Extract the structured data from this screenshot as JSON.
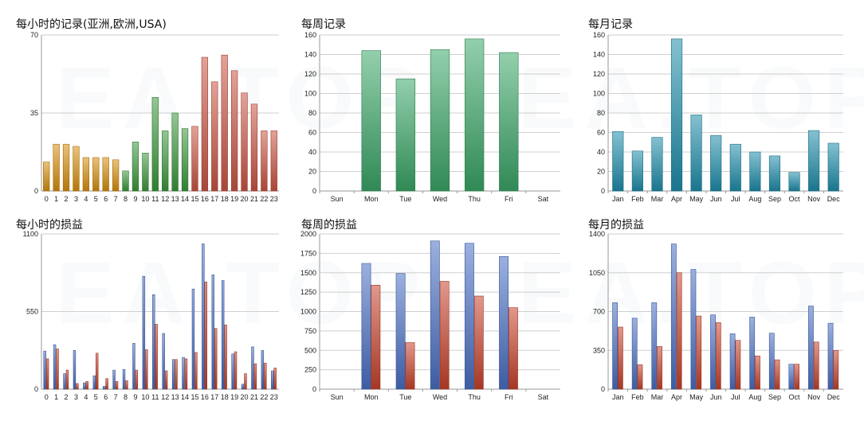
{
  "watermark": "EA.TOP",
  "chart_data": [
    {
      "id": "hourly-records",
      "type": "bar",
      "title": "每小时的记录(亚洲,欧洲,USA)",
      "categories": [
        "0",
        "1",
        "2",
        "3",
        "4",
        "5",
        "6",
        "7",
        "8",
        "9",
        "10",
        "11",
        "12",
        "13",
        "14",
        "15",
        "16",
        "17",
        "18",
        "19",
        "20",
        "21",
        "22",
        "23"
      ],
      "series": [
        {
          "values": [
            13,
            21,
            21,
            20,
            15,
            15,
            15,
            14,
            9,
            22,
            17,
            42,
            27,
            35,
            28,
            29,
            60,
            49,
            61,
            54,
            44,
            39,
            27,
            27
          ]
        }
      ],
      "bar_colors": [
        "#d9900e",
        "#d9900e",
        "#d9900e",
        "#d9900e",
        "#d9900e",
        "#d9900e",
        "#d9900e",
        "#d9900e",
        "#3c9a3c",
        "#3c9a3c",
        "#3c9a3c",
        "#3c9a3c",
        "#3c9a3c",
        "#3c9a3c",
        "#3c9a3c",
        "#cc5544",
        "#cc5544",
        "#cc5544",
        "#cc5544",
        "#cc5544",
        "#cc5544",
        "#cc5544",
        "#cc5544",
        "#cc5544"
      ],
      "ylim": [
        0,
        70
      ],
      "yticks": [
        0,
        35,
        70
      ],
      "grid": true
    },
    {
      "id": "weekly-records",
      "type": "bar",
      "title": "每周记录",
      "categories": [
        "Sun",
        "Mon",
        "Tue",
        "Wed",
        "Thu",
        "Fri",
        "Sat"
      ],
      "series": [
        {
          "values": [
            0,
            144,
            115,
            145,
            156,
            142,
            0
          ],
          "color": "#3aa768"
        }
      ],
      "ylim": [
        0,
        160
      ],
      "yticks": [
        0,
        20,
        40,
        60,
        80,
        100,
        120,
        140,
        160
      ],
      "grid": true
    },
    {
      "id": "monthly-records",
      "type": "bar",
      "title": "每月记录",
      "categories": [
        "Jan",
        "Feb",
        "Mar",
        "Apr",
        "May",
        "Jun",
        "Jul",
        "Aug",
        "Sep",
        "Oct",
        "Nov",
        "Dec"
      ],
      "series": [
        {
          "values": [
            61,
            41,
            55,
            156,
            78,
            57,
            48,
            40,
            36,
            19,
            62,
            49
          ],
          "color": "#1f8fac"
        }
      ],
      "ylim": [
        0,
        160
      ],
      "yticks": [
        0,
        20,
        40,
        60,
        80,
        100,
        120,
        140,
        160
      ],
      "grid": true
    },
    {
      "id": "hourly-profit",
      "type": "bar",
      "title": "每小时的损益",
      "categories": [
        "0",
        "1",
        "2",
        "3",
        "4",
        "5",
        "6",
        "7",
        "8",
        "9",
        "10",
        "11",
        "12",
        "13",
        "14",
        "15",
        "16",
        "17",
        "18",
        "19",
        "20",
        "21",
        "22",
        "23"
      ],
      "series": [
        {
          "values": [
            270,
            315,
            110,
            275,
            45,
            95,
            20,
            135,
            140,
            325,
            800,
            670,
            395,
            210,
            225,
            710,
            1030,
            810,
            770,
            250,
            35,
            300,
            275,
            130
          ],
          "color": "#4a70c5"
        },
        {
          "values": [
            215,
            285,
            135,
            40,
            55,
            255,
            75,
            55,
            60,
            135,
            280,
            460,
            130,
            210,
            215,
            260,
            760,
            430,
            455,
            265,
            110,
            180,
            185,
            150
          ],
          "color": "#c9432c"
        }
      ],
      "ylim": [
        0,
        1100
      ],
      "yticks": [
        0,
        550,
        1100
      ],
      "grid": true
    },
    {
      "id": "weekly-profit",
      "type": "bar",
      "title": "每周的损益",
      "categories": [
        "Sun",
        "Mon",
        "Tue",
        "Wed",
        "Thu",
        "Fri",
        "Sat"
      ],
      "series": [
        {
          "values": [
            0,
            1620,
            1490,
            1910,
            1880,
            1710,
            0
          ],
          "color": "#4a70c5"
        },
        {
          "values": [
            0,
            1340,
            600,
            1390,
            1200,
            1050,
            0
          ],
          "color": "#c9432c"
        }
      ],
      "ylim": [
        0,
        2000
      ],
      "yticks": [
        0,
        250,
        500,
        750,
        1000,
        1250,
        1500,
        1750,
        2000
      ],
      "grid": true
    },
    {
      "id": "monthly-profit",
      "type": "bar",
      "title": "每月的损益",
      "categories": [
        "Jan",
        "Feb",
        "Mar",
        "Apr",
        "May",
        "Jun",
        "Jul",
        "Aug",
        "Sep",
        "Oct",
        "Nov",
        "Dec"
      ],
      "series": [
        {
          "values": [
            780,
            640,
            780,
            1310,
            1080,
            670,
            500,
            650,
            505,
            225,
            750,
            595
          ],
          "color": "#4a70c5"
        },
        {
          "values": [
            560,
            220,
            385,
            1050,
            660,
            600,
            440,
            300,
            265,
            225,
            425,
            350
          ],
          "color": "#c9432c"
        }
      ],
      "ylim": [
        0,
        1400
      ],
      "yticks": [
        0,
        350,
        700,
        1050,
        1400
      ],
      "grid": true
    }
  ]
}
